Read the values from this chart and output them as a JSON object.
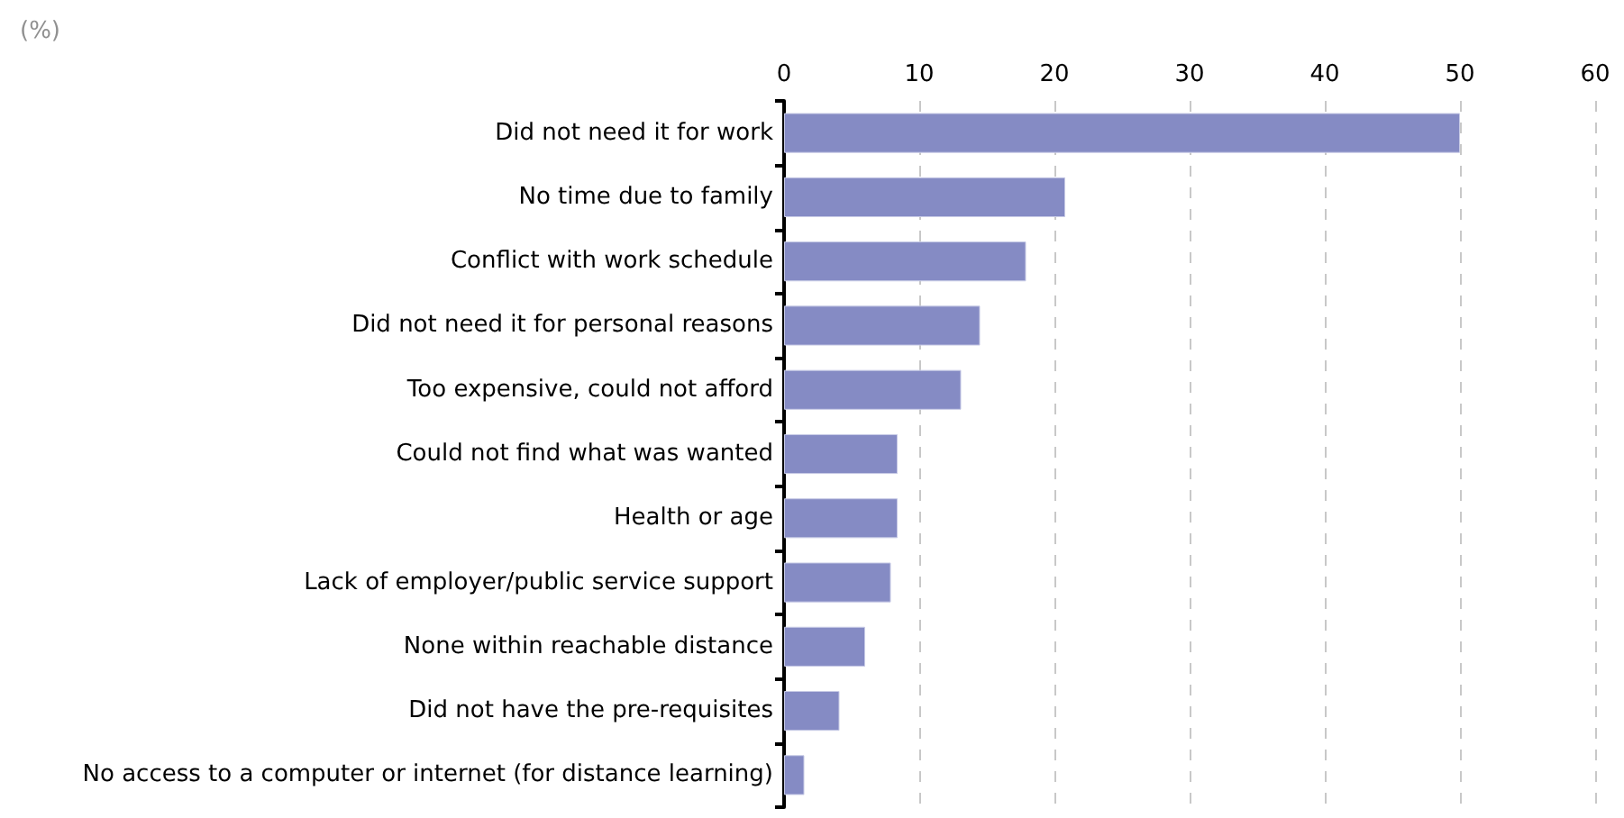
{
  "chart_data": {
    "type": "bar",
    "orientation": "horizontal",
    "xlabel": "(%)",
    "categories": [
      "Did not need it for work",
      "No time due to family",
      "Conflict with work schedule",
      "Did not need it for personal reasons",
      "Too expensive, could not afford",
      "Could not find what was wanted",
      "Health or age",
      "Lack of employer/public service support",
      "None within reachable distance",
      "Did not have the pre-requisites",
      "No access to a computer or internet (for distance learning)"
    ],
    "values": [
      50,
      20.8,
      17.9,
      14.5,
      13.1,
      8.4,
      8.4,
      7.9,
      6.0,
      4.1,
      1.5
    ],
    "color": "#858bc4",
    "xlim": [
      0,
      60
    ],
    "xticks": [
      0,
      10,
      20,
      30,
      40,
      50,
      60
    ],
    "grid": "x"
  }
}
